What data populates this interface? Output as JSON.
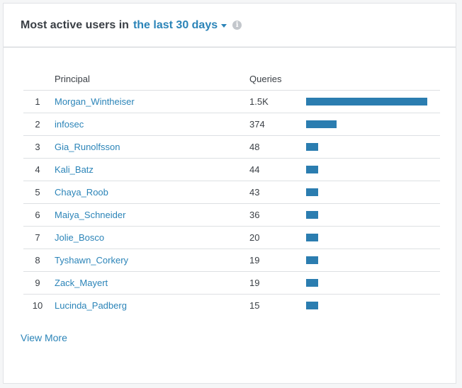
{
  "header": {
    "title": "Most active users in",
    "range": "the last 30 days"
  },
  "table": {
    "columns": {
      "rank": "",
      "principal": "Principal",
      "queries": "Queries"
    },
    "rows": [
      {
        "rank": "1",
        "principal": "Morgan_Wintheiser",
        "queries": "1.5K",
        "value": 1500
      },
      {
        "rank": "2",
        "principal": "infosec",
        "queries": "374",
        "value": 374
      },
      {
        "rank": "3",
        "principal": "Gia_Runolfsson",
        "queries": "48",
        "value": 48
      },
      {
        "rank": "4",
        "principal": "Kali_Batz",
        "queries": "44",
        "value": 44
      },
      {
        "rank": "5",
        "principal": "Chaya_Roob",
        "queries": "43",
        "value": 43
      },
      {
        "rank": "6",
        "principal": "Maiya_Schneider",
        "queries": "36",
        "value": 36
      },
      {
        "rank": "7",
        "principal": "Jolie_Bosco",
        "queries": "20",
        "value": 20
      },
      {
        "rank": "8",
        "principal": "Tyshawn_Corkery",
        "queries": "19",
        "value": 19
      },
      {
        "rank": "9",
        "principal": "Zack_Mayert",
        "queries": "19",
        "value": 19
      },
      {
        "rank": "10",
        "principal": "Lucinda_Padberg",
        "queries": "15",
        "value": 15
      }
    ]
  },
  "footer": {
    "view_more": "View More"
  },
  "colors": {
    "accent": "#2b84b8",
    "bar": "#2b7db0"
  },
  "icons": {
    "range_dropdown": "caret-down-icon",
    "info": "info-icon"
  }
}
